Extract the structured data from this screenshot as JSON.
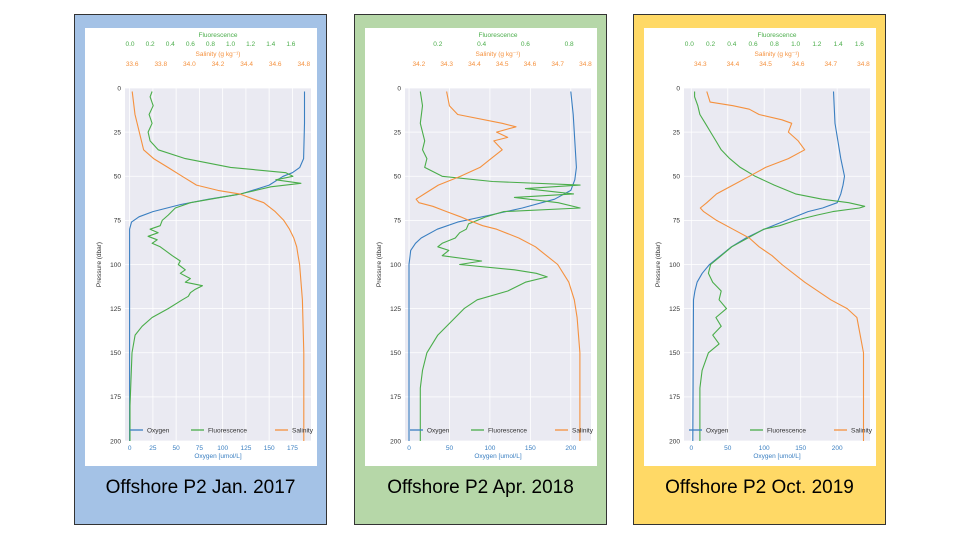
{
  "colors": {
    "oxygen": "#3a7fc1",
    "fluorescence": "#4aad4a",
    "salinity": "#f5913e",
    "plot_bg": "#eaeaf2",
    "grid": "#ffffff"
  },
  "chart_data": [
    {
      "type": "line",
      "panel_color": "#a4c2e6",
      "caption": "Offshore P2 Jan. 2017",
      "ylabel": "Pressure (dbar)",
      "yticks": [
        0,
        25,
        50,
        75,
        100,
        125,
        150,
        175,
        200
      ],
      "ylim": [
        200,
        0
      ],
      "oxygen_axis": {
        "label": "Oxygen [umol/L]",
        "lim": [
          -5,
          195
        ],
        "ticks": [
          0,
          25,
          50,
          75,
          100,
          125,
          150,
          175
        ],
        "tick_labels": [
          "0",
          "25",
          "50",
          "75",
          "100",
          "125",
          "150",
          "175"
        ]
      },
      "fluorescence_axis": {
        "label": "Fluorescence",
        "lim": [
          -0.05,
          1.8
        ],
        "ticks": [
          0.0,
          0.2,
          0.4,
          0.6,
          0.8,
          1.0,
          1.2,
          1.4,
          1.6
        ],
        "tick_labels": [
          "0.0",
          "0.2",
          "0.4",
          "0.6",
          "0.8",
          "1.0",
          "1.2",
          "1.4",
          "1.6"
        ]
      },
      "salinity_axis": {
        "label": "Salinity (g kg⁻¹)",
        "lim": [
          33.55,
          34.85
        ],
        "ticks": [
          33.6,
          33.8,
          34.0,
          34.2,
          34.4,
          34.6,
          34.8
        ],
        "tick_labels": [
          "33.6",
          "33.8",
          "34.0",
          "34.2",
          "34.4",
          "34.6",
          "34.8"
        ]
      },
      "legend": [
        "Oxygen",
        "Fluorescence",
        "Salinity"
      ],
      "series": {
        "oxygen": {
          "pressure": [
            2,
            20,
            40,
            45,
            48,
            50,
            55,
            60,
            63,
            66,
            70,
            73,
            76,
            80,
            100,
            150,
            200
          ],
          "values": [
            188,
            188,
            187,
            183,
            175,
            165,
            150,
            120,
            85,
            55,
            25,
            10,
            2,
            0,
            0,
            0,
            0
          ]
        },
        "fluorescence": {
          "pressure": [
            2,
            5,
            10,
            15,
            20,
            25,
            30,
            35,
            40,
            45,
            48,
            50,
            52,
            54,
            56,
            58,
            60,
            62,
            65,
            68,
            72,
            75,
            78,
            80,
            82,
            84,
            86,
            88,
            90,
            92,
            95,
            98,
            100,
            103,
            105,
            108,
            110,
            112,
            114,
            116,
            118,
            120,
            125,
            130,
            135,
            140,
            150,
            165,
            180,
            200
          ],
          "values": [
            0.22,
            0.2,
            0.23,
            0.19,
            0.22,
            0.18,
            0.2,
            0.28,
            0.55,
            1.0,
            1.55,
            1.62,
            1.45,
            1.7,
            1.4,
            1.25,
            1.1,
            0.9,
            0.6,
            0.45,
            0.38,
            0.32,
            0.3,
            0.2,
            0.28,
            0.18,
            0.27,
            0.22,
            0.3,
            0.35,
            0.42,
            0.5,
            0.48,
            0.55,
            0.5,
            0.6,
            0.55,
            0.72,
            0.65,
            0.6,
            0.58,
            0.52,
            0.38,
            0.22,
            0.12,
            0.05,
            0.02,
            0.01,
            0.0,
            0.0
          ]
        },
        "salinity": {
          "pressure": [
            2,
            15,
            25,
            35,
            40,
            45,
            50,
            55,
            58,
            60,
            63,
            65,
            70,
            75,
            80,
            85,
            90,
            95,
            100,
            120,
            150,
            200
          ],
          "values": [
            33.6,
            33.62,
            33.65,
            33.68,
            33.75,
            33.85,
            33.95,
            34.05,
            34.2,
            34.35,
            34.45,
            34.52,
            34.6,
            34.66,
            34.7,
            34.73,
            34.75,
            34.76,
            34.77,
            34.79,
            34.8,
            34.8
          ]
        }
      }
    },
    {
      "type": "line",
      "panel_color": "#b6d7a8",
      "caption": "Offshore P2 Apr. 2018",
      "ylabel": "Pressure (dbar)",
      "yticks": [
        0,
        25,
        50,
        75,
        100,
        125,
        150,
        175,
        200
      ],
      "ylim": [
        200,
        0
      ],
      "oxygen_axis": {
        "label": "Oxygen [umol/L]",
        "lim": [
          -5,
          225
        ],
        "ticks": [
          0,
          50,
          100,
          150,
          200
        ],
        "tick_labels": [
          "0",
          "50",
          "100",
          "150",
          "200"
        ]
      },
      "fluorescence_axis": {
        "label": "Fluorescence",
        "lim": [
          0.05,
          0.9
        ],
        "ticks": [
          0.2,
          0.4,
          0.6,
          0.8
        ],
        "tick_labels": [
          "0.2",
          "0.4",
          "0.6",
          "0.8"
        ]
      },
      "salinity_axis": {
        "label": "Salinity (g kg⁻¹)",
        "lim": [
          34.15,
          34.82
        ],
        "ticks": [
          34.2,
          34.3,
          34.4,
          34.5,
          34.6,
          34.7,
          34.8
        ],
        "tick_labels": [
          "34.2",
          "34.3",
          "34.4",
          "34.5",
          "34.6",
          "34.7",
          "34.8"
        ]
      },
      "legend": [
        "Oxygen",
        "Fluorescence",
        "Salinity"
      ],
      "series": {
        "oxygen": {
          "pressure": [
            2,
            15,
            30,
            45,
            52,
            58,
            63,
            68,
            72,
            76,
            80,
            85,
            88,
            92,
            100,
            200
          ],
          "values": [
            200,
            203,
            205,
            207,
            205,
            200,
            180,
            140,
            100,
            60,
            35,
            15,
            8,
            2,
            0,
            0
          ]
        },
        "fluorescence": {
          "pressure": [
            2,
            10,
            20,
            30,
            35,
            40,
            45,
            50,
            53,
            55,
            57,
            60,
            62,
            65,
            68,
            70,
            73,
            75,
            77,
            80,
            82,
            85,
            88,
            90,
            92,
            95,
            98,
            100,
            103,
            105,
            107,
            110,
            115,
            120,
            125,
            130,
            140,
            150,
            160,
            170,
            200
          ],
          "values": [
            0.12,
            0.13,
            0.12,
            0.14,
            0.13,
            0.15,
            0.14,
            0.22,
            0.45,
            0.85,
            0.6,
            0.82,
            0.55,
            0.75,
            0.85,
            0.5,
            0.42,
            0.38,
            0.34,
            0.33,
            0.3,
            0.28,
            0.22,
            0.2,
            0.25,
            0.22,
            0.4,
            0.3,
            0.55,
            0.65,
            0.7,
            0.6,
            0.52,
            0.38,
            0.32,
            0.28,
            0.2,
            0.15,
            0.13,
            0.12,
            0.12
          ]
        },
        "salinity": {
          "pressure": [
            2,
            10,
            15,
            20,
            22,
            25,
            28,
            30,
            35,
            40,
            45,
            50,
            55,
            60,
            63,
            65,
            67,
            70,
            73,
            75,
            78,
            80,
            85,
            90,
            95,
            100,
            110,
            120,
            130,
            150,
            200
          ],
          "values": [
            34.3,
            34.31,
            34.34,
            34.5,
            34.55,
            34.48,
            34.52,
            34.47,
            34.5,
            34.46,
            34.42,
            34.35,
            34.27,
            34.22,
            34.19,
            34.2,
            34.25,
            34.3,
            34.35,
            34.38,
            34.43,
            34.48,
            34.56,
            34.62,
            34.66,
            34.7,
            34.74,
            34.76,
            34.77,
            34.78,
            34.78
          ]
        }
      }
    },
    {
      "type": "line",
      "panel_color": "#ffd966",
      "caption": "Offshore P2 Oct. 2019",
      "ylabel": "Pressure (dbar)",
      "yticks": [
        0,
        25,
        50,
        75,
        100,
        125,
        150,
        175,
        200
      ],
      "ylim": [
        200,
        0
      ],
      "oxygen_axis": {
        "label": "Oxygen [umol/L]",
        "lim": [
          -10,
          245
        ],
        "ticks": [
          0,
          50,
          100,
          150,
          200
        ],
        "tick_labels": [
          "0",
          "50",
          "100",
          "150",
          "200"
        ]
      },
      "fluorescence_axis": {
        "label": "Fluorescence",
        "lim": [
          -0.05,
          1.7
        ],
        "ticks": [
          0.0,
          0.2,
          0.4,
          0.6,
          0.8,
          1.0,
          1.2,
          1.4,
          1.6
        ],
        "tick_labels": [
          "0.0",
          "0.2",
          "0.4",
          "0.6",
          "0.8",
          "1.0",
          "1.2",
          "1.4",
          "1.6"
        ]
      },
      "salinity_axis": {
        "label": "Salinity (g kg⁻¹)",
        "lim": [
          34.25,
          34.82
        ],
        "ticks": [
          34.3,
          34.4,
          34.5,
          34.6,
          34.7,
          34.8
        ],
        "tick_labels": [
          "34.3",
          "34.4",
          "34.5",
          "34.6",
          "34.7",
          "34.8"
        ]
      },
      "legend": [
        "Oxygen",
        "Fluorescence",
        "Salinity"
      ],
      "series": {
        "oxygen": {
          "pressure": [
            2,
            20,
            40,
            50,
            55,
            60,
            65,
            68,
            70,
            75,
            80,
            85,
            90,
            95,
            100,
            105,
            110,
            115,
            120,
            200
          ],
          "values": [
            195,
            197,
            205,
            210,
            208,
            205,
            200,
            180,
            160,
            130,
            100,
            75,
            55,
            40,
            25,
            15,
            8,
            5,
            3,
            2
          ]
        },
        "fluorescence": {
          "pressure": [
            2,
            5,
            10,
            15,
            20,
            25,
            30,
            35,
            40,
            45,
            50,
            55,
            60,
            63,
            65,
            67,
            68,
            70,
            72,
            75,
            78,
            80,
            85,
            90,
            95,
            100,
            105,
            110,
            115,
            120,
            125,
            130,
            135,
            140,
            145,
            150,
            160,
            170,
            200
          ],
          "values": [
            0.05,
            0.05,
            0.08,
            0.1,
            0.15,
            0.2,
            0.25,
            0.3,
            0.38,
            0.48,
            0.62,
            0.8,
            1.0,
            1.25,
            1.5,
            1.65,
            1.6,
            1.35,
            1.2,
            1.0,
            0.85,
            0.7,
            0.55,
            0.4,
            0.3,
            0.2,
            0.18,
            0.22,
            0.3,
            0.28,
            0.35,
            0.25,
            0.3,
            0.22,
            0.28,
            0.18,
            0.12,
            0.1,
            0.1
          ]
        },
        "salinity": {
          "pressure": [
            2,
            8,
            10,
            12,
            15,
            18,
            20,
            25,
            30,
            35,
            40,
            45,
            50,
            55,
            60,
            65,
            68,
            70,
            75,
            80,
            85,
            90,
            95,
            100,
            110,
            120,
            125,
            130,
            140,
            150,
            200
          ],
          "values": [
            34.32,
            34.33,
            34.4,
            34.45,
            34.48,
            34.55,
            34.58,
            34.57,
            34.6,
            34.62,
            34.57,
            34.5,
            34.45,
            34.4,
            34.35,
            34.32,
            34.3,
            34.31,
            34.35,
            34.4,
            34.45,
            34.48,
            34.52,
            34.55,
            34.62,
            34.7,
            34.75,
            34.78,
            34.79,
            34.8,
            34.8
          ]
        }
      }
    }
  ]
}
